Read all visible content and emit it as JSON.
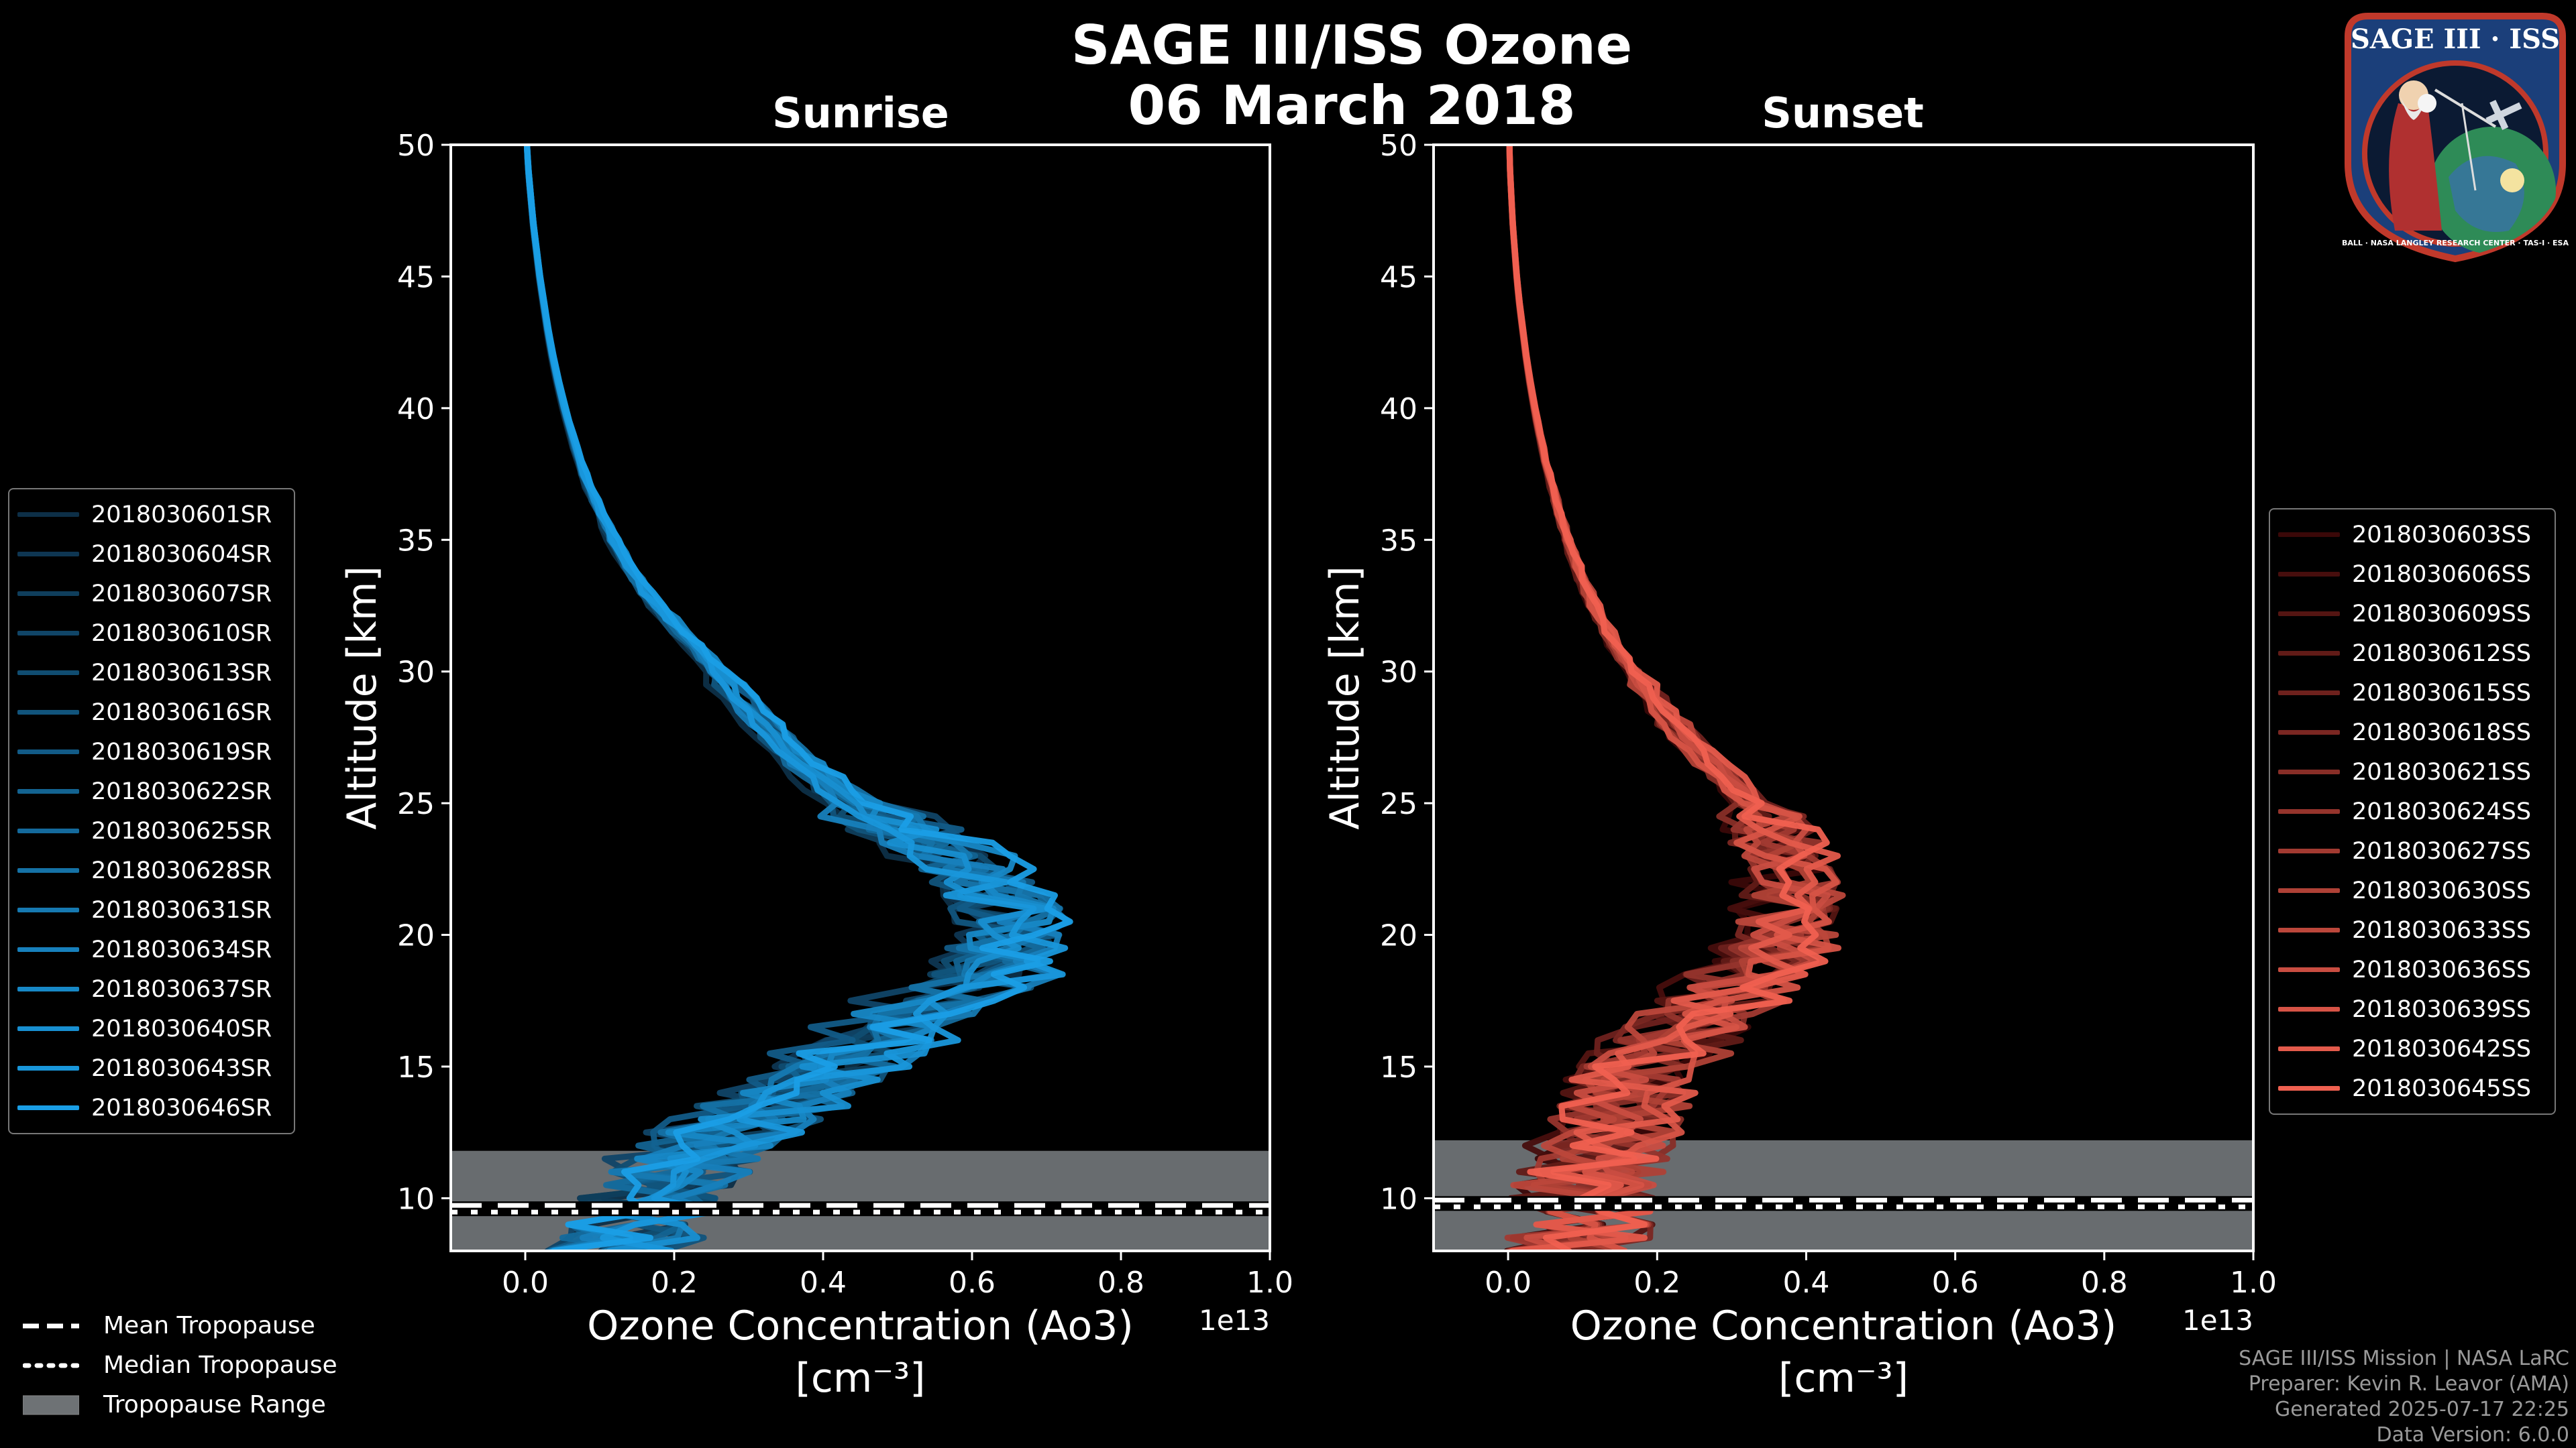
{
  "chart_data": {
    "type": "line",
    "title": "SAGE III/ISS Ozone",
    "subtitle": "06 March 2018",
    "panels": [
      {
        "title": "Sunrise",
        "xlabel": "Ozone Concentration (Ao3)",
        "xunit": "[cm⁻³]",
        "xscale_label": "1e13",
        "ylabel": "Altitude [km]",
        "xlim": [
          -0.1,
          1.0
        ],
        "ylim": [
          8,
          50
        ],
        "xticks": [
          0.0,
          0.2,
          0.4,
          0.6,
          0.8,
          1.0
        ],
        "xtick_labels": [
          "0.0",
          "0.2",
          "0.4",
          "0.6",
          "0.8",
          "1.0"
        ],
        "yticks": [
          10,
          15,
          20,
          25,
          30,
          35,
          40,
          45,
          50
        ],
        "ytick_labels": [
          "10",
          "15",
          "20",
          "25",
          "30",
          "35",
          "40",
          "45",
          "50"
        ],
        "tropopause": {
          "mean": 9.6,
          "median": 9.6,
          "range": [
            8,
            11.8
          ]
        },
        "color_start": "#0d2f47",
        "color_end": "#1a9ee6",
        "mean_profile": {
          "alt": [
            8,
            9,
            10,
            11,
            12,
            13,
            14,
            15,
            16,
            17,
            18,
            19,
            20,
            21,
            22,
            23,
            24,
            25,
            26,
            27,
            28,
            29,
            30,
            31,
            32,
            33,
            34,
            35,
            36,
            37,
            38,
            39,
            40,
            41,
            42,
            43,
            44,
            45,
            46,
            47,
            48,
            49,
            50
          ],
          "val": [
            0.12,
            0.14,
            0.16,
            0.19,
            0.23,
            0.28,
            0.33,
            0.38,
            0.43,
            0.49,
            0.55,
            0.6,
            0.62,
            0.61,
            0.58,
            0.53,
            0.47,
            0.41,
            0.37,
            0.33,
            0.3,
            0.27,
            0.24,
            0.21,
            0.18,
            0.15,
            0.13,
            0.11,
            0.095,
            0.08,
            0.068,
            0.058,
            0.049,
            0.041,
            0.034,
            0.028,
            0.023,
            0.018,
            0.014,
            0.01,
            0.007,
            0.004,
            0.002
          ]
        },
        "series": [
          {
            "name": "2018030601SR"
          },
          {
            "name": "2018030604SR"
          },
          {
            "name": "2018030607SR"
          },
          {
            "name": "2018030610SR"
          },
          {
            "name": "2018030613SR"
          },
          {
            "name": "2018030616SR"
          },
          {
            "name": "2018030619SR"
          },
          {
            "name": "2018030622SR"
          },
          {
            "name": "2018030625SR"
          },
          {
            "name": "2018030628SR"
          },
          {
            "name": "2018030631SR"
          },
          {
            "name": "2018030634SR"
          },
          {
            "name": "2018030637SR"
          },
          {
            "name": "2018030640SR"
          },
          {
            "name": "2018030643SR"
          },
          {
            "name": "2018030646SR"
          }
        ]
      },
      {
        "title": "Sunset",
        "xlabel": "Ozone Concentration (Ao3)",
        "xunit": "[cm⁻³]",
        "xscale_label": "1e13",
        "ylabel": "Altitude [km]",
        "xlim": [
          -0.1,
          1.0
        ],
        "ylim": [
          8,
          50
        ],
        "xticks": [
          0.0,
          0.2,
          0.4,
          0.6,
          0.8,
          1.0
        ],
        "xtick_labels": [
          "0.0",
          "0.2",
          "0.4",
          "0.6",
          "0.8",
          "1.0"
        ],
        "yticks": [
          10,
          15,
          20,
          25,
          30,
          35,
          40,
          45,
          50
        ],
        "ytick_labels": [
          "10",
          "15",
          "20",
          "25",
          "30",
          "35",
          "40",
          "45",
          "50"
        ],
        "tropopause": {
          "mean": 9.8,
          "median": 9.8,
          "range": [
            8,
            12.2
          ]
        },
        "color_start": "#3a0808",
        "color_end": "#f06050",
        "mean_profile": {
          "alt": [
            8,
            9,
            10,
            11,
            12,
            13,
            14,
            15,
            16,
            17,
            18,
            19,
            20,
            21,
            22,
            23,
            24,
            25,
            26,
            27,
            28,
            29,
            30,
            31,
            32,
            33,
            34,
            35,
            36,
            37,
            38,
            39,
            40,
            41,
            42,
            43,
            44,
            45,
            46,
            47,
            48,
            49,
            50
          ],
          "val": [
            0.1,
            0.11,
            0.12,
            0.13,
            0.14,
            0.16,
            0.18,
            0.21,
            0.25,
            0.3,
            0.35,
            0.39,
            0.42,
            0.43,
            0.43,
            0.42,
            0.4,
            0.37,
            0.33,
            0.29,
            0.25,
            0.22,
            0.19,
            0.16,
            0.14,
            0.12,
            0.105,
            0.09,
            0.078,
            0.067,
            0.057,
            0.048,
            0.04,
            0.033,
            0.027,
            0.022,
            0.017,
            0.013,
            0.01,
            0.007,
            0.005,
            0.003,
            0.002
          ]
        },
        "series": [
          {
            "name": "2018030603SS"
          },
          {
            "name": "2018030606SS"
          },
          {
            "name": "2018030609SS"
          },
          {
            "name": "2018030612SS"
          },
          {
            "name": "2018030615SS"
          },
          {
            "name": "2018030618SS"
          },
          {
            "name": "2018030621SS"
          },
          {
            "name": "2018030624SS"
          },
          {
            "name": "2018030627SS"
          },
          {
            "name": "2018030630SS"
          },
          {
            "name": "2018030633SS"
          },
          {
            "name": "2018030636SS"
          },
          {
            "name": "2018030639SS"
          },
          {
            "name": "2018030642SS"
          },
          {
            "name": "2018030645SS"
          }
        ]
      }
    ],
    "tropopause_legend": {
      "mean": "Mean Tropopause",
      "median": "Median Tropopause",
      "range": "Tropopause Range"
    }
  },
  "credits": [
    "SAGE III/ISS Mission | NASA LaRC",
    "Preparer: Kevin R. Leavor (AMA)",
    "Generated 2025-07-17 22:25",
    "Data Version: 6.0.0"
  ],
  "logo": {
    "title": "SAGE III · ISS",
    "ring_text": "BALL · NASA LANGLEY RESEARCH CENTER · TAS-I · ESA",
    "colors": {
      "ring": "#1b3f7a",
      "border": "#c0392b",
      "earth": "#2e8b57"
    }
  },
  "colors": {
    "background": "#000000",
    "axes": "#ffffff",
    "tropo_fill": "#6e7275"
  }
}
